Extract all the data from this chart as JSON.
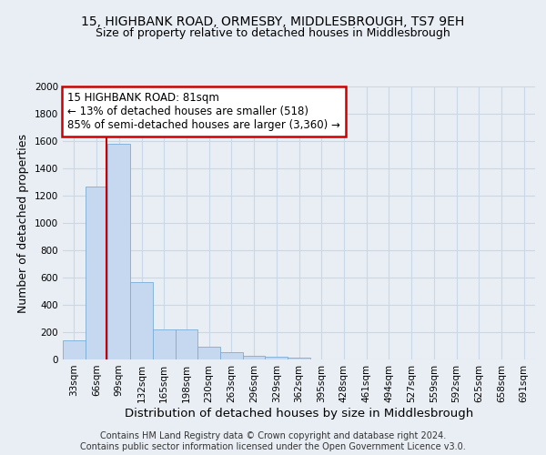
{
  "title": "15, HIGHBANK ROAD, ORMESBY, MIDDLESBROUGH, TS7 9EH",
  "subtitle": "Size of property relative to detached houses in Middlesbrough",
  "xlabel": "Distribution of detached houses by size in Middlesbrough",
  "ylabel": "Number of detached properties",
  "bar_color": "#c5d8ef",
  "bar_edge_color": "#7aadd4",
  "annotation_line_color": "#cc0000",
  "annotation_box_color": "#cc0000",
  "annotation_text": "15 HIGHBANK ROAD: 81sqm\n← 13% of detached houses are smaller (518)\n85% of semi-detached houses are larger (3,360) →",
  "property_size": 81,
  "footer_line1": "Contains HM Land Registry data © Crown copyright and database right 2024.",
  "footer_line2": "Contains public sector information licensed under the Open Government Licence v3.0.",
  "categories": [
    "33sqm",
    "66sqm",
    "99sqm",
    "132sqm",
    "165sqm",
    "198sqm",
    "230sqm",
    "263sqm",
    "296sqm",
    "329sqm",
    "362sqm",
    "395sqm",
    "428sqm",
    "461sqm",
    "494sqm",
    "527sqm",
    "559sqm",
    "592sqm",
    "625sqm",
    "658sqm",
    "691sqm"
  ],
  "values": [
    140,
    1270,
    1580,
    570,
    220,
    220,
    95,
    55,
    25,
    20,
    15,
    0,
    0,
    0,
    0,
    0,
    0,
    0,
    0,
    0,
    0
  ],
  "ylim": [
    0,
    2000
  ],
  "yticks": [
    0,
    200,
    400,
    600,
    800,
    1000,
    1200,
    1400,
    1600,
    1800,
    2000
  ],
  "background_color": "#e8eef4",
  "plot_background": "#e8eef4",
  "grid_color": "#c8d8e8",
  "title_fontsize": 10,
  "subtitle_fontsize": 9,
  "axis_label_fontsize": 9,
  "tick_fontsize": 7.5,
  "footer_fontsize": 7,
  "annot_fontsize": 8.5
}
